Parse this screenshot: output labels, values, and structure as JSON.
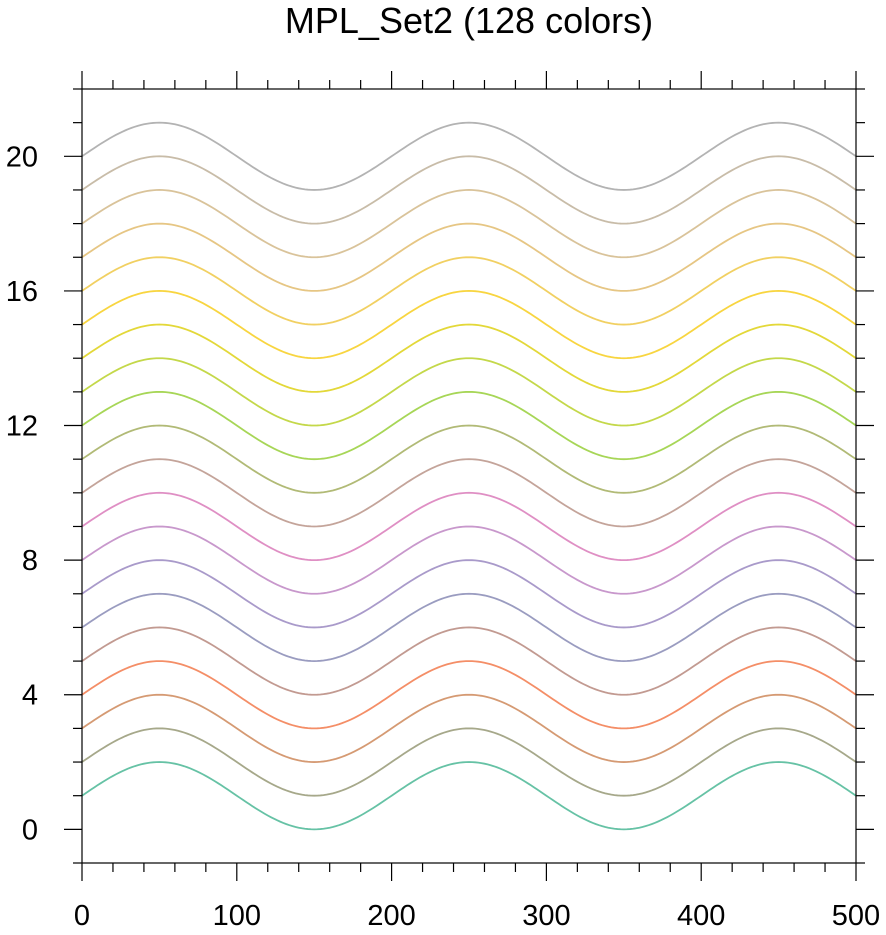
{
  "chart_data": {
    "type": "line",
    "title": "MPL_Set2 (128 colors)",
    "xlabel": "",
    "ylabel": "",
    "xlim": [
      0,
      500
    ],
    "ylim": [
      -1,
      22
    ],
    "x_major_ticks": [
      0,
      100,
      200,
      300,
      400,
      500
    ],
    "x_minor_step": 20,
    "y_major_ticks": [
      0,
      4,
      8,
      12,
      16,
      20
    ],
    "y_minor_step": 1,
    "x_tick_labels": [
      "0",
      "100",
      "200",
      "300",
      "400",
      "500"
    ],
    "y_tick_labels": [
      "0",
      "4",
      "8",
      "12",
      "16",
      "20"
    ],
    "grid": false,
    "legend": "none",
    "function": "y = offset + sin(2*pi*x/200)",
    "x_start": 0,
    "x_end": 500,
    "series": [
      {
        "offset": 1,
        "color": "#66c2a5"
      },
      {
        "offset": 2,
        "color": "#a6a88a"
      },
      {
        "offset": 3,
        "color": "#d59a73"
      },
      {
        "offset": 4,
        "color": "#f48e67"
      },
      {
        "offset": 5,
        "color": "#c29a91"
      },
      {
        "offset": 6,
        "color": "#9a9cc0"
      },
      {
        "offset": 7,
        "color": "#a99aca"
      },
      {
        "offset": 8,
        "color": "#c898cc"
      },
      {
        "offset": 9,
        "color": "#df8fc4"
      },
      {
        "offset": 10,
        "color": "#c4a49a"
      },
      {
        "offset": 11,
        "color": "#b1ba76"
      },
      {
        "offset": 12,
        "color": "#a7d657"
      },
      {
        "offset": 13,
        "color": "#c4d84a"
      },
      {
        "offset": 14,
        "color": "#e3d839"
      },
      {
        "offset": 15,
        "color": "#f8d540"
      },
      {
        "offset": 16,
        "color": "#f1d062"
      },
      {
        "offset": 17,
        "color": "#e6c684"
      },
      {
        "offset": 18,
        "color": "#d9c39a"
      },
      {
        "offset": 19,
        "color": "#c8bca8"
      },
      {
        "offset": 20,
        "color": "#b3b3b3"
      }
    ]
  }
}
